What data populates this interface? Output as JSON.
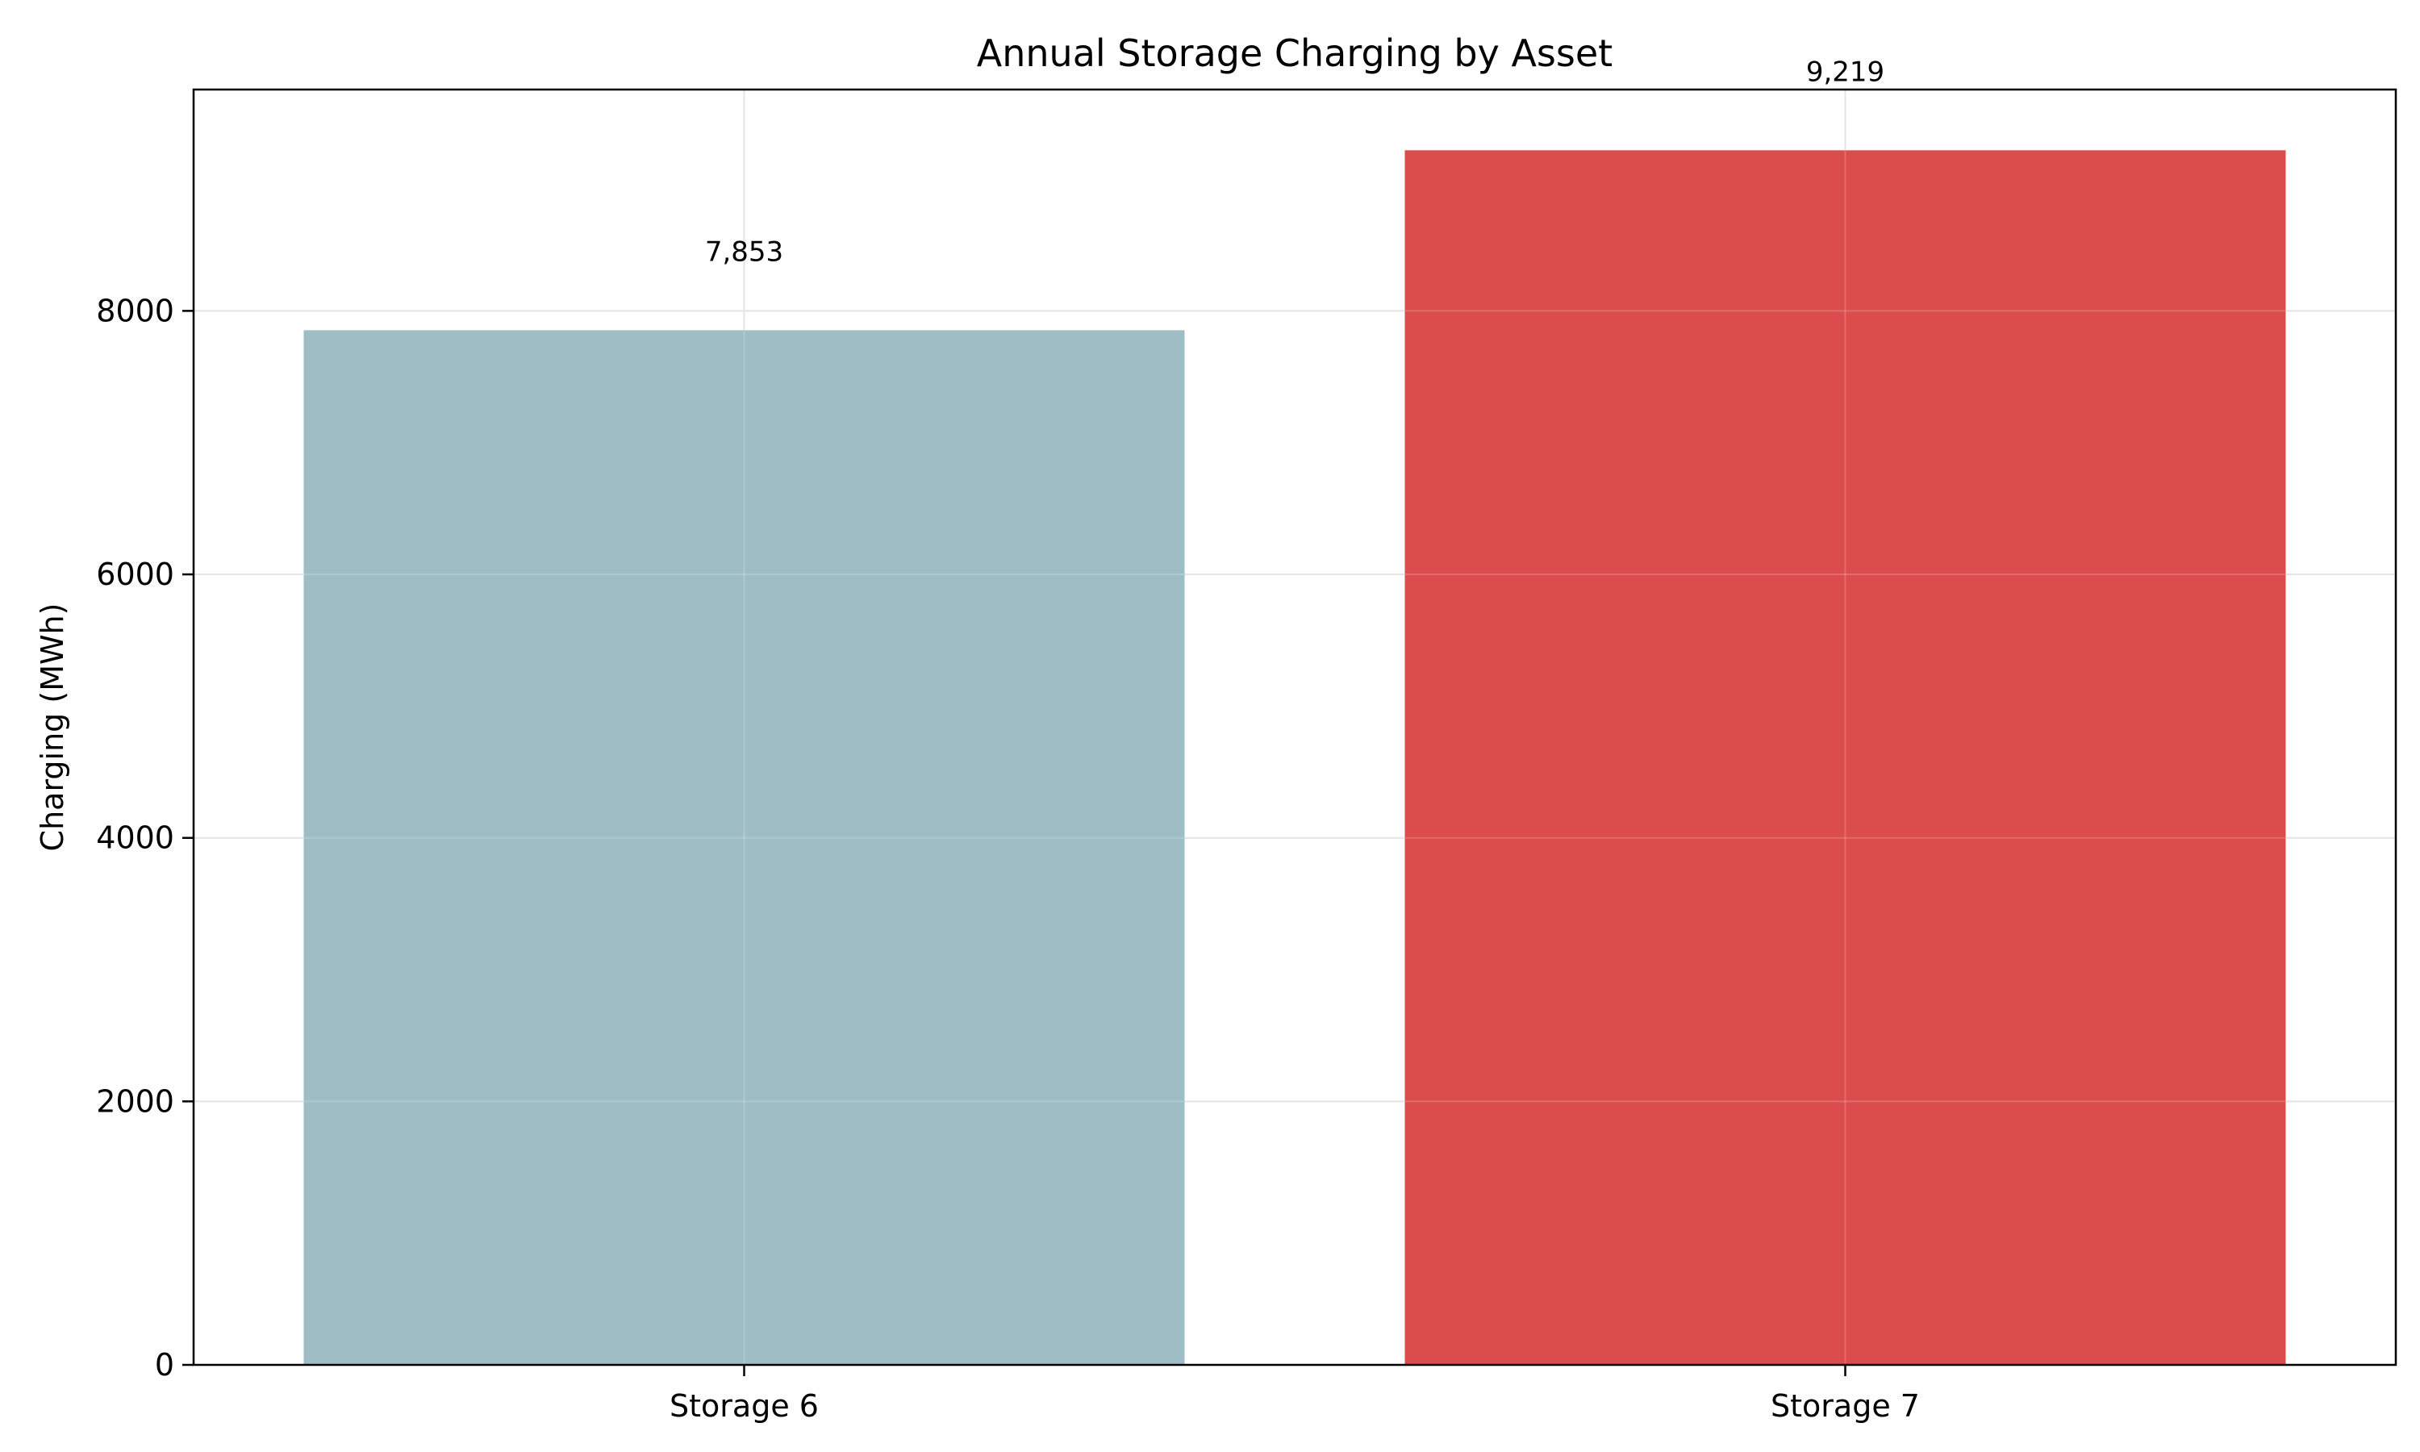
{
  "chart_data": {
    "type": "bar",
    "title": "Annual Storage Charging by Asset",
    "xlabel": "",
    "ylabel": "Charging (MWh)",
    "categories": [
      "Storage 6",
      "Storage 7"
    ],
    "values": [
      7853,
      9219
    ],
    "value_labels": [
      "7,853",
      "9,219"
    ],
    "bar_colors": [
      "#9ebdc5",
      "#db4c4c"
    ],
    "ylim": [
      0,
      9680
    ],
    "yticks": [
      0,
      2000,
      4000,
      6000,
      8000
    ],
    "ytick_labels": [
      "0",
      "2000",
      "4000",
      "6000",
      "8000"
    ],
    "grid": true,
    "legend": "none"
  }
}
